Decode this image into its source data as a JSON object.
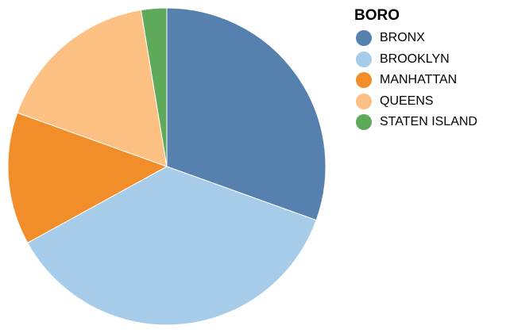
{
  "chart_data": {
    "type": "pie",
    "categories": [
      "BRONX",
      "BROOKLYN",
      "MANHATTAN",
      "QUEENS",
      "STATEN ISLAND"
    ],
    "values": [
      30.5,
      36.5,
      13.5,
      16.9,
      2.6
    ],
    "colors": [
      "#5680ae",
      "#a6ccea",
      "#f18e2a",
      "#fdc083",
      "#5fa95a"
    ],
    "legend": {
      "title": "BORO",
      "placement": "right"
    },
    "slice_borders": "white"
  }
}
